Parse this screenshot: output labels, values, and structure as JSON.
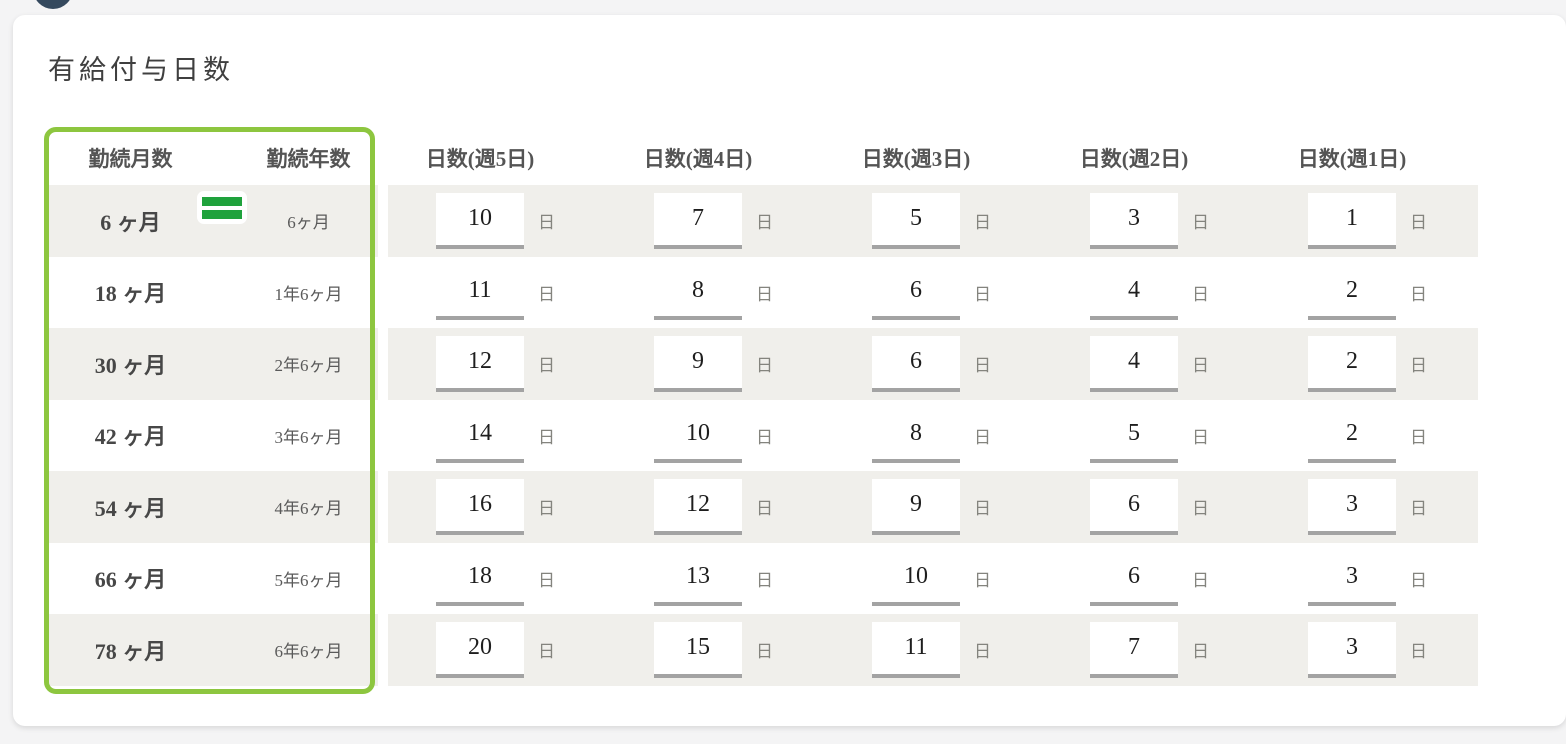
{
  "page": {
    "title": "有給付与日数"
  },
  "colors": {
    "highlight_green": "#8dc63f",
    "equals_green": "#1fa23c",
    "circle_navy": "#35495e",
    "stripe_gray": "#f0efeb",
    "underline_gray": "#a3a3a3"
  },
  "icons": {
    "equals_icon": "=",
    "circle_icon": "●"
  },
  "table": {
    "headers": [
      "勤続月数",
      "勤続年数",
      "日数(週5日)",
      "日数(週4日)",
      "日数(週3日)",
      "日数(週2日)",
      "日数(週1日)"
    ],
    "day_suffix": "日",
    "rows": [
      {
        "months": "6 ヶ月",
        "years": "6ヶ月",
        "values": [
          "10",
          "7",
          "5",
          "3",
          "1"
        ]
      },
      {
        "months": "18 ヶ月",
        "years": "1年6ヶ月",
        "values": [
          "11",
          "8",
          "6",
          "4",
          "2"
        ]
      },
      {
        "months": "30 ヶ月",
        "years": "2年6ヶ月",
        "values": [
          "12",
          "9",
          "6",
          "4",
          "2"
        ]
      },
      {
        "months": "42 ヶ月",
        "years": "3年6ヶ月",
        "values": [
          "14",
          "10",
          "8",
          "5",
          "2"
        ]
      },
      {
        "months": "54 ヶ月",
        "years": "4年6ヶ月",
        "values": [
          "16",
          "12",
          "9",
          "6",
          "3"
        ]
      },
      {
        "months": "66 ヶ月",
        "years": "5年6ヶ月",
        "values": [
          "18",
          "13",
          "10",
          "6",
          "3"
        ]
      },
      {
        "months": "78 ヶ月",
        "years": "6年6ヶ月",
        "values": [
          "20",
          "15",
          "11",
          "7",
          "3"
        ]
      }
    ]
  }
}
